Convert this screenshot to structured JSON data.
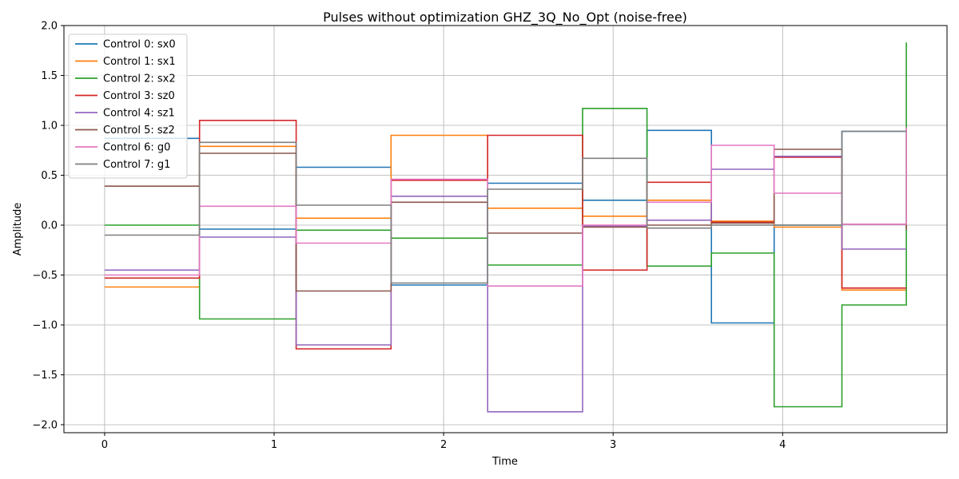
{
  "chart_data": {
    "type": "line",
    "step": "post",
    "title": "Pulses without optimization GHZ_3Q_No_Opt (noise-free)",
    "xlabel": "Time",
    "ylabel": "Amplitude",
    "xlim": [
      -0.24,
      4.97
    ],
    "ylim": [
      -2.08,
      2.0
    ],
    "xticks": [
      0,
      1,
      2,
      3,
      4
    ],
    "yticks": [
      -2.0,
      -1.5,
      -1.0,
      -0.5,
      0.0,
      0.5,
      1.0,
      1.5,
      2.0
    ],
    "xtick_labels": [
      "0",
      "1",
      "2",
      "3",
      "4"
    ],
    "ytick_labels": [
      "−2.0",
      "−1.5",
      "−1.0",
      "−0.5",
      "0.0",
      "0.5",
      "1.0",
      "1.5",
      "2.0"
    ],
    "grid": true,
    "legend_position": "top-left",
    "x": [
      0,
      0.56,
      1.13,
      1.69,
      2.26,
      2.82,
      3.2,
      3.58,
      3.95,
      4.35,
      4.73
    ],
    "series": [
      {
        "name": "Control 0: sx0",
        "color": "#1f77b4",
        "values": [
          0.87,
          -0.04,
          0.58,
          -0.6,
          0.42,
          0.25,
          0.95,
          -0.98,
          0.0,
          0.94,
          0.94
        ]
      },
      {
        "name": "Control 1: sx1",
        "color": "#ff7f0e",
        "values": [
          -0.62,
          0.79,
          0.07,
          0.9,
          0.17,
          0.09,
          0.25,
          0.04,
          -0.02,
          -0.65,
          -0.65
        ]
      },
      {
        "name": "Control 2: sx2",
        "color": "#2ca02c",
        "values": [
          0.0,
          -0.94,
          -0.05,
          -0.13,
          -0.4,
          1.17,
          -0.41,
          -0.28,
          -1.82,
          -0.8,
          1.83
        ]
      },
      {
        "name": "Control 3: sz0",
        "color": "#d62728",
        "values": [
          -0.53,
          1.05,
          -1.24,
          0.45,
          0.9,
          -0.45,
          0.43,
          0.03,
          0.68,
          -0.63,
          -0.63
        ]
      },
      {
        "name": "Control 4: sz1",
        "color": "#9467bd",
        "values": [
          -0.45,
          -0.12,
          -1.2,
          0.29,
          -1.87,
          -0.01,
          0.05,
          0.56,
          0.69,
          -0.24,
          -0.24
        ]
      },
      {
        "name": "Control 5: sz2",
        "color": "#8c564b",
        "values": [
          0.39,
          0.72,
          -0.66,
          0.23,
          -0.08,
          -0.02,
          0.0,
          0.02,
          0.76,
          0.01,
          -0.05
        ]
      },
      {
        "name": "Control 6: g0",
        "color": "#e377c2",
        "values": [
          -0.5,
          0.19,
          -0.18,
          0.46,
          -0.61,
          0.0,
          0.23,
          0.8,
          0.32,
          0.01,
          0.98
        ]
      },
      {
        "name": "Control 7: g1",
        "color": "#7f7f7f",
        "values": [
          -0.1,
          0.83,
          0.2,
          -0.58,
          0.36,
          0.67,
          -0.03,
          0.0,
          0.0,
          0.94,
          0.94
        ]
      }
    ]
  }
}
